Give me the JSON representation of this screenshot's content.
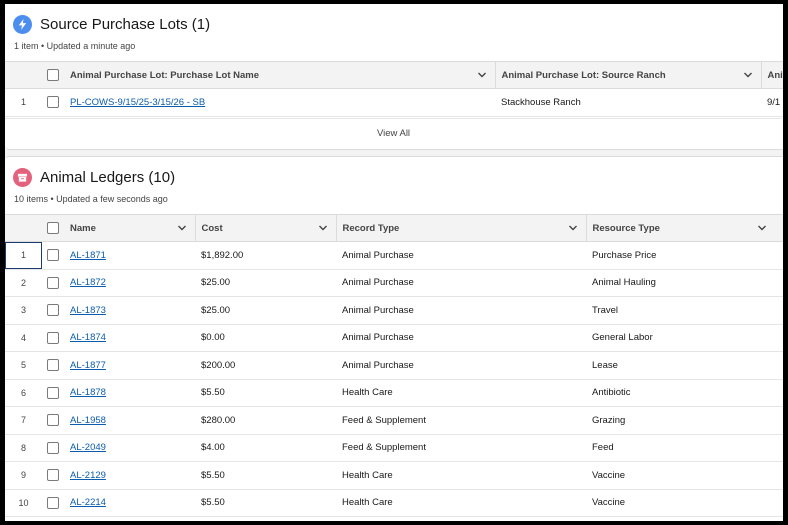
{
  "lots": {
    "title": "Source Purchase Lots (1)",
    "subtitle": "1 item • Updated a minute ago",
    "columns": [
      "Animal Purchase Lot: Purchase Lot Name",
      "Animal Purchase Lot: Source Ranch",
      "Ani"
    ],
    "rows": [
      {
        "num": "1",
        "name": "PL-COWS-9/15/25-3/15/26 - SB",
        "ranch": "Stackhouse Ranch",
        "extra": "9/1"
      }
    ],
    "view_all": "View All",
    "icon": "lightning-icon",
    "icon_color": "#4c8ef0"
  },
  "ledgers": {
    "title": "Animal Ledgers (10)",
    "subtitle": "10 items • Updated a few seconds ago",
    "icon": "archive-box-icon",
    "icon_color": "#e3627c",
    "columns": [
      "Name",
      "Cost",
      "Record Type",
      "Resource Type"
    ],
    "rows": [
      {
        "num": "1",
        "name": "AL-1871",
        "cost": "$1,892.00",
        "record_type": "Animal Purchase",
        "resource_type": "Purchase Price"
      },
      {
        "num": "2",
        "name": "AL-1872",
        "cost": "$25.00",
        "record_type": "Animal Purchase",
        "resource_type": "Animal Hauling"
      },
      {
        "num": "3",
        "name": "AL-1873",
        "cost": "$25.00",
        "record_type": "Animal Purchase",
        "resource_type": "Travel"
      },
      {
        "num": "4",
        "name": "AL-1874",
        "cost": "$0.00",
        "record_type": "Animal Purchase",
        "resource_type": "General Labor"
      },
      {
        "num": "5",
        "name": "AL-1877",
        "cost": "$200.00",
        "record_type": "Animal Purchase",
        "resource_type": "Lease"
      },
      {
        "num": "6",
        "name": "AL-1878",
        "cost": "$5.50",
        "record_type": "Health Care",
        "resource_type": "Antibiotic"
      },
      {
        "num": "7",
        "name": "AL-1958",
        "cost": "$280.00",
        "record_type": "Feed & Supplement",
        "resource_type": "Grazing"
      },
      {
        "num": "8",
        "name": "AL-2049",
        "cost": "$4.00",
        "record_type": "Feed & Supplement",
        "resource_type": "Feed"
      },
      {
        "num": "9",
        "name": "AL-2129",
        "cost": "$5.50",
        "record_type": "Health Care",
        "resource_type": "Vaccine"
      },
      {
        "num": "10",
        "name": "AL-2214",
        "cost": "$5.50",
        "record_type": "Health Care",
        "resource_type": "Vaccine"
      }
    ]
  }
}
